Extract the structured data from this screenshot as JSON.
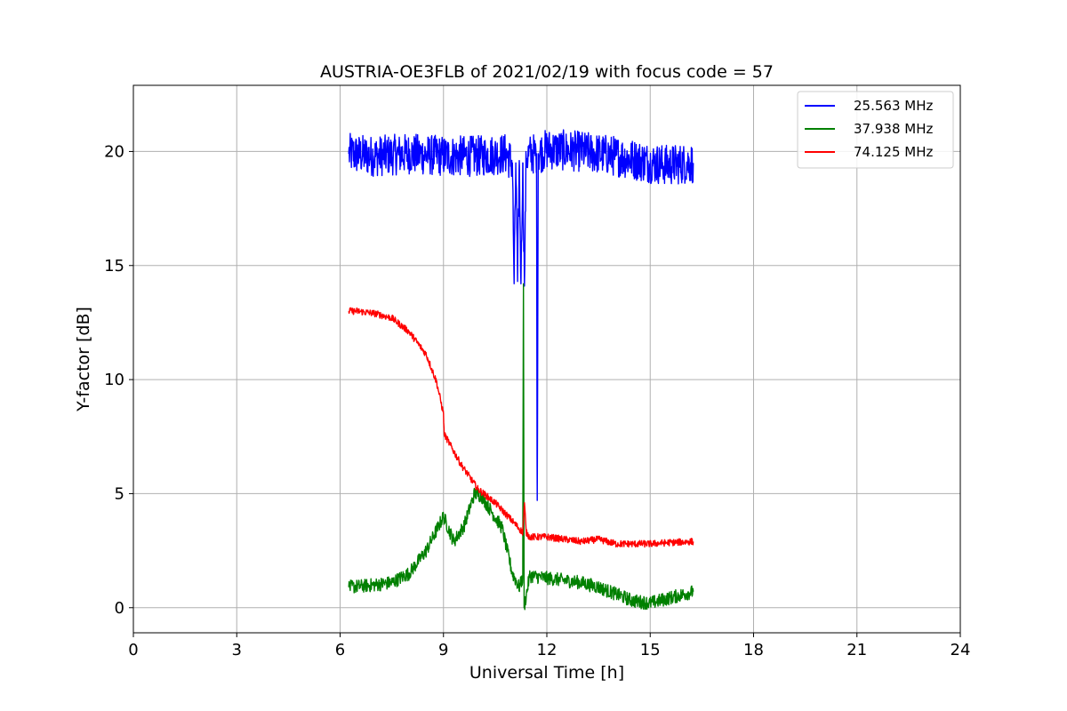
{
  "chart_data": {
    "type": "line",
    "title": "AUSTRIA-OE3FLB of 2021/02/19 with focus code = 57",
    "xlabel": "Universal Time [h]",
    "ylabel": "Y-factor [dB]",
    "xlim": [
      0,
      24
    ],
    "ylim": [
      -1.1,
      22.9
    ],
    "xticks": [
      0,
      3,
      6,
      9,
      12,
      15,
      18,
      21,
      24
    ],
    "yticks": [
      0,
      5,
      10,
      15,
      20
    ],
    "grid": true,
    "legend_position": "top-right",
    "series": [
      {
        "name": "25.563 MHz",
        "color": "#0000ff",
        "noise": 0.9,
        "x": [
          6.25,
          7.0,
          8.0,
          9.0,
          10.0,
          10.8,
          11.0,
          11.05,
          11.1,
          11.15,
          11.2,
          11.25,
          11.3,
          11.35,
          11.4,
          11.6,
          11.7,
          11.72,
          11.75,
          12.0,
          13.0,
          14.0,
          15.0,
          15.5,
          16.25
        ],
        "y": [
          19.9,
          19.8,
          19.9,
          19.8,
          19.8,
          19.9,
          19.5,
          14.2,
          19.5,
          14.3,
          19.6,
          14.2,
          19.5,
          14.1,
          19.8,
          19.9,
          19.9,
          4.7,
          19.9,
          20.1,
          20.0,
          19.8,
          19.5,
          19.4,
          19.5
        ]
      },
      {
        "name": "37.938 MHz",
        "color": "#008000",
        "noise": 0.3,
        "x": [
          6.25,
          7.0,
          7.5,
          8.0,
          8.5,
          9.0,
          9.3,
          9.6,
          9.9,
          10.1,
          10.4,
          10.7,
          11.0,
          11.2,
          11.3,
          11.32,
          11.34,
          11.5,
          12.0,
          12.5,
          13.0,
          13.5,
          14.0,
          14.5,
          15.0,
          15.5,
          16.25
        ],
        "y": [
          0.9,
          1.0,
          1.1,
          1.5,
          2.5,
          4.0,
          2.9,
          3.6,
          5.0,
          4.9,
          4.2,
          3.5,
          1.5,
          0.9,
          1.3,
          14.2,
          0.0,
          1.4,
          1.3,
          1.2,
          1.1,
          0.9,
          0.6,
          0.3,
          0.2,
          0.4,
          0.7
        ]
      },
      {
        "name": "74.125 MHz",
        "color": "#ff0000",
        "noise": 0.15,
        "x": [
          6.25,
          6.5,
          7.0,
          7.5,
          8.0,
          8.5,
          8.8,
          9.0,
          9.02,
          9.1,
          9.5,
          10.0,
          10.5,
          11.0,
          11.3,
          11.35,
          11.4,
          11.5,
          12.0,
          12.5,
          13.0,
          13.5,
          14.0,
          14.5,
          15.0,
          15.5,
          16.25
        ],
        "y": [
          13.0,
          13.0,
          12.9,
          12.7,
          12.1,
          11.1,
          9.9,
          8.5,
          7.6,
          7.4,
          6.3,
          5.2,
          4.6,
          3.8,
          3.3,
          4.6,
          3.3,
          3.1,
          3.1,
          3.0,
          2.9,
          3.0,
          2.8,
          2.8,
          2.8,
          2.85,
          2.9
        ]
      }
    ]
  }
}
